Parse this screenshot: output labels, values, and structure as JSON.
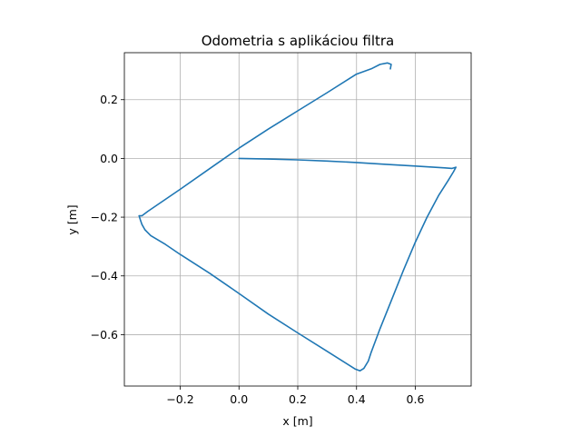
{
  "chart_data": {
    "type": "line",
    "title": "Odometria s aplikáciou filtra",
    "xlabel": "x [m]",
    "ylabel": "y [m]",
    "xlim": [
      -0.39,
      0.79
    ],
    "ylim": [
      -0.775,
      0.36
    ],
    "x_ticks": [
      -0.2,
      0.0,
      0.2,
      0.4,
      0.6
    ],
    "x_tick_labels": [
      "−0.2",
      "0.0",
      "0.2",
      "0.4",
      "0.6"
    ],
    "y_ticks": [
      -0.6,
      -0.4,
      -0.2,
      0.0,
      0.2
    ],
    "y_tick_labels": [
      "−0.6",
      "−0.4",
      "−0.2",
      "0.0",
      "0.2"
    ],
    "grid": true,
    "aspect": "equal",
    "series": [
      {
        "color": "#1f77b4",
        "points": [
          [
            0.0,
            0.0
          ],
          [
            0.1,
            -0.002
          ],
          [
            0.2,
            -0.005
          ],
          [
            0.3,
            -0.009
          ],
          [
            0.4,
            -0.014
          ],
          [
            0.5,
            -0.02
          ],
          [
            0.6,
            -0.026
          ],
          [
            0.7,
            -0.032
          ],
          [
            0.725,
            -0.034
          ],
          [
            0.738,
            -0.03
          ],
          [
            0.73,
            -0.045
          ],
          [
            0.712,
            -0.075
          ],
          [
            0.68,
            -0.125
          ],
          [
            0.64,
            -0.2
          ],
          [
            0.6,
            -0.285
          ],
          [
            0.56,
            -0.38
          ],
          [
            0.52,
            -0.48
          ],
          [
            0.48,
            -0.58
          ],
          [
            0.45,
            -0.66
          ],
          [
            0.44,
            -0.69
          ],
          [
            0.425,
            -0.715
          ],
          [
            0.412,
            -0.723
          ],
          [
            0.395,
            -0.717
          ],
          [
            0.3,
            -0.657
          ],
          [
            0.2,
            -0.594
          ],
          [
            0.1,
            -0.53
          ],
          [
            0.0,
            -0.46
          ],
          [
            -0.1,
            -0.391
          ],
          [
            -0.2,
            -0.327
          ],
          [
            -0.25,
            -0.293
          ],
          [
            -0.3,
            -0.263
          ],
          [
            -0.32,
            -0.243
          ],
          [
            -0.33,
            -0.225
          ],
          [
            -0.336,
            -0.208
          ],
          [
            -0.34,
            -0.195
          ],
          [
            -0.33,
            -0.195
          ],
          [
            -0.31,
            -0.18
          ],
          [
            -0.2,
            -0.105
          ],
          [
            -0.1,
            -0.035
          ],
          [
            0.0,
            0.035
          ],
          [
            0.1,
            0.1
          ],
          [
            0.2,
            0.162
          ],
          [
            0.3,
            0.224
          ],
          [
            0.37,
            0.268
          ],
          [
            0.4,
            0.287
          ],
          [
            0.45,
            0.305
          ],
          [
            0.48,
            0.32
          ],
          [
            0.505,
            0.325
          ],
          [
            0.518,
            0.32
          ],
          [
            0.515,
            0.305
          ]
        ]
      }
    ]
  }
}
